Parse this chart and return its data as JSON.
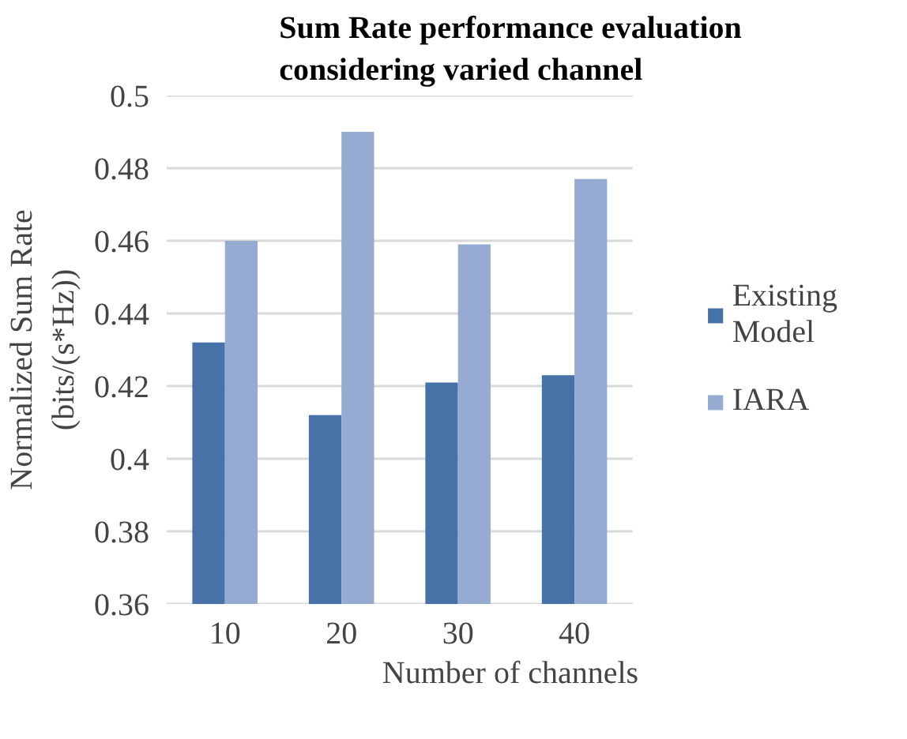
{
  "chart_data": {
    "type": "bar",
    "title": "Sum Rate performance evaluation\nconsidering varied channel",
    "xlabel": "Number of channels",
    "ylabel": "Normalized Sum Rate\n(bits/(s*Hz))",
    "categories": [
      "10",
      "20",
      "30",
      "40"
    ],
    "series": [
      {
        "name": "Existing\nModel",
        "color": "#4672a8",
        "values": [
          0.432,
          0.412,
          0.421,
          0.423
        ]
      },
      {
        "name": "IARA",
        "color": "#95abd1",
        "values": [
          0.46,
          0.49,
          0.459,
          0.477
        ]
      }
    ],
    "ylim": [
      0.36,
      0.5
    ],
    "yticks": [
      0.36,
      0.38,
      0.4,
      0.42,
      0.44,
      0.46,
      0.48,
      0.5
    ],
    "grid": "y",
    "legend": "right"
  }
}
